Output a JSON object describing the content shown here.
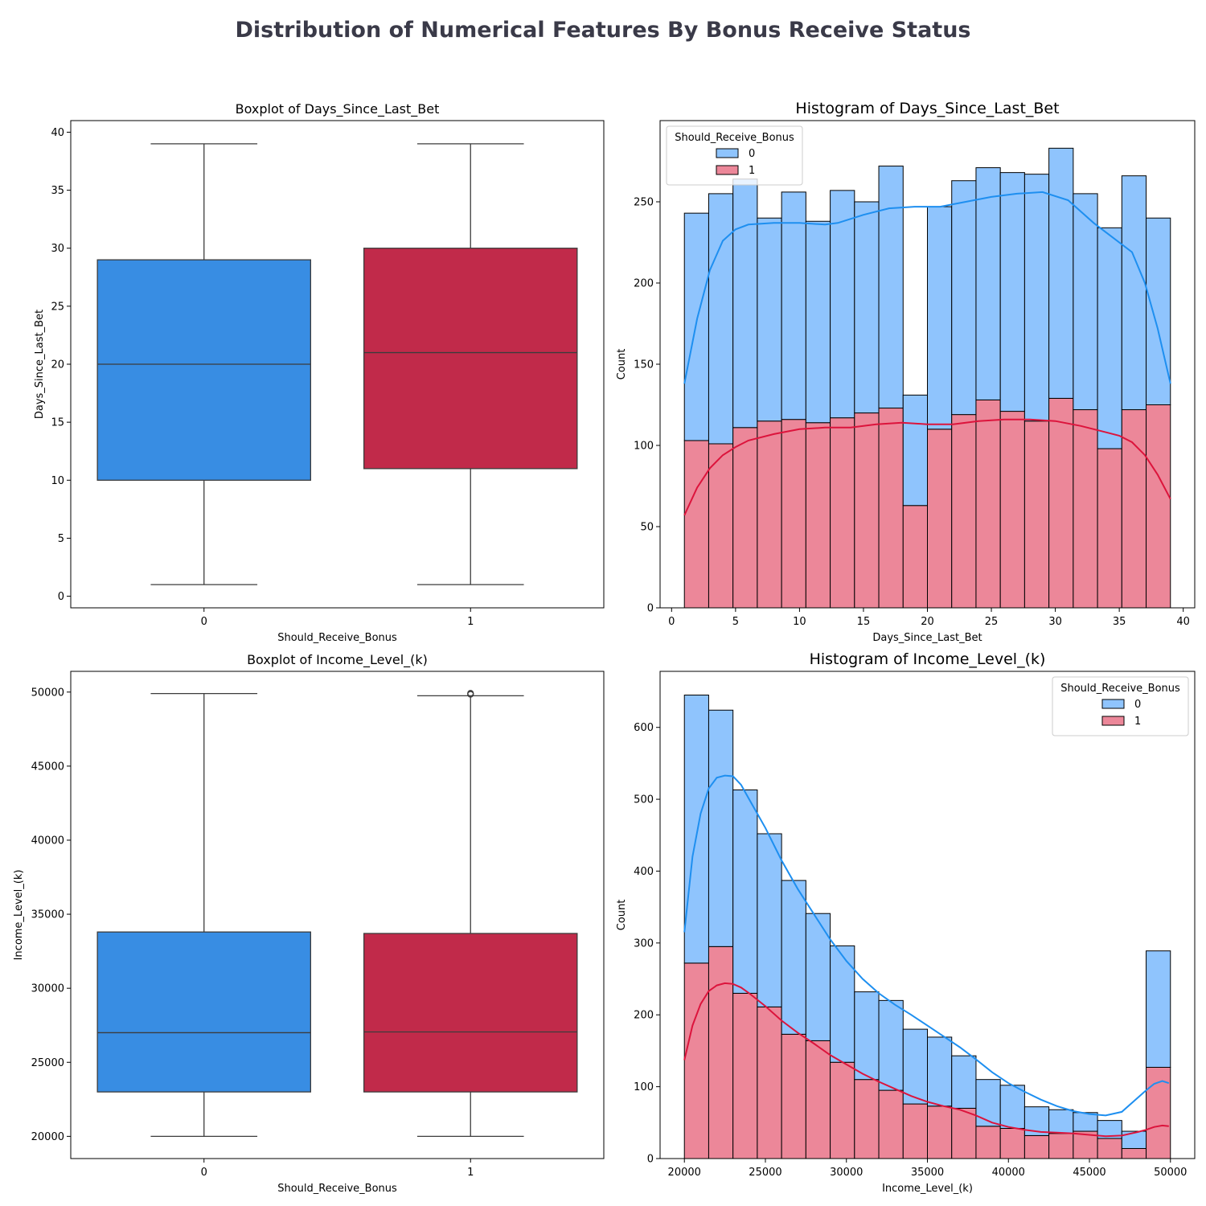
{
  "figure": {
    "title": "Distribution of Numerical Features By Bonus Receive Status"
  },
  "colors": {
    "box_0": "#388de3",
    "box_1": "#c12a4a",
    "hist_0": "#8fc4fd",
    "hist_1": "#ec8799",
    "kde_0": "#1e8ff0",
    "kde_1": "#dc143c"
  },
  "chart_data": [
    {
      "id": "box_days",
      "type": "box",
      "title": "Boxplot of Days_Since_Last_Bet",
      "xlabel": "Should_Receive_Bonus",
      "ylabel": "Days_Since_Last_Bet",
      "ylim": [
        -1,
        41
      ],
      "yticks": [
        0,
        5,
        10,
        15,
        20,
        25,
        30,
        35,
        40
      ],
      "categories": [
        "0",
        "1"
      ],
      "boxes": [
        {
          "category": "0",
          "whisker_low": 1,
          "q1": 10,
          "median": 20,
          "q3": 29,
          "whisker_high": 39,
          "outliers": []
        },
        {
          "category": "1",
          "whisker_low": 1,
          "q1": 11,
          "median": 21,
          "q3": 30,
          "whisker_high": 39,
          "outliers": []
        }
      ]
    },
    {
      "id": "hist_days",
      "type": "histogram",
      "title": "Histogram of Days_Since_Last_Bet",
      "xlabel": "Days_Since_Last_Bet",
      "ylabel": "Count",
      "xlim": [
        -0.9,
        40.9
      ],
      "ylim": [
        0,
        300
      ],
      "xticks": [
        0,
        5,
        10,
        15,
        20,
        25,
        30,
        35,
        40
      ],
      "yticks": [
        0,
        50,
        100,
        150,
        200,
        250
      ],
      "stacked": true,
      "bin_start": 1,
      "bin_width": 1.9,
      "legend": {
        "title": "Should_Receive_Bonus",
        "labels": [
          "0",
          "1"
        ],
        "position": "upper-left"
      },
      "series": [
        {
          "name": "1",
          "values": [
            103,
            101,
            111,
            115,
            116,
            114,
            117,
            120,
            123,
            63,
            110,
            119,
            128,
            121,
            115,
            129,
            122,
            98,
            122,
            125
          ]
        },
        {
          "name": "0",
          "values": [
            140,
            154,
            153,
            125,
            140,
            124,
            140,
            130,
            149,
            68,
            137,
            144,
            143,
            147,
            152,
            154,
            133,
            136,
            144,
            115
          ]
        }
      ],
      "kde": [
        {
          "name": "0",
          "x": [
            1,
            2,
            3,
            4,
            5,
            6,
            8,
            10,
            12,
            13,
            15,
            17,
            19,
            21,
            23,
            25,
            27,
            29,
            31,
            33,
            34,
            36,
            37,
            38,
            39
          ],
          "y": [
            138,
            178,
            208,
            226,
            233,
            236,
            237,
            237,
            236,
            237,
            242,
            246,
            247,
            247,
            250,
            253,
            255,
            256,
            251,
            237,
            231,
            219,
            200,
            172,
            138
          ]
        },
        {
          "name": "1",
          "x": [
            1,
            2,
            3,
            4,
            5,
            6,
            8,
            10,
            12,
            14,
            16,
            18,
            20,
            22,
            24,
            26,
            28,
            30,
            32,
            34,
            35,
            36,
            37,
            38,
            39
          ],
          "y": [
            57,
            74,
            86,
            94,
            99,
            103,
            107,
            110,
            111,
            111,
            113,
            114,
            113,
            113,
            115,
            116,
            116,
            115,
            112,
            108,
            106,
            102,
            94,
            82,
            67
          ]
        }
      ]
    },
    {
      "id": "box_income",
      "type": "box",
      "title": "Boxplot of Income_Level_(k)",
      "xlabel": "Should_Receive_Bonus",
      "ylabel": "Income_Level_(k)",
      "ylim": [
        18500,
        51400
      ],
      "yticks": [
        20000,
        25000,
        30000,
        35000,
        40000,
        45000,
        50000
      ],
      "categories": [
        "0",
        "1"
      ],
      "boxes": [
        {
          "category": "0",
          "whisker_low": 20000,
          "q1": 23000,
          "median": 27000,
          "q3": 33800,
          "whisker_high": 49900,
          "outliers": []
        },
        {
          "category": "1",
          "whisker_low": 20000,
          "q1": 23000,
          "median": 27050,
          "q3": 33700,
          "whisker_high": 49750,
          "outliers": [
            49850,
            49920
          ]
        }
      ]
    },
    {
      "id": "hist_income",
      "type": "histogram",
      "title": "Histogram of Income_Level_(k)",
      "xlabel": "Income_Level_(k)",
      "ylabel": "Count",
      "xlim": [
        18500,
        51500
      ],
      "ylim": [
        0,
        678
      ],
      "xticks": [
        20000,
        25000,
        30000,
        35000,
        40000,
        45000,
        50000
      ],
      "yticks": [
        0,
        100,
        200,
        300,
        400,
        500,
        600
      ],
      "stacked": true,
      "bin_start": 20000,
      "bin_width": 1500,
      "legend": {
        "title": "Should_Receive_Bonus",
        "labels": [
          "0",
          "1"
        ],
        "position": "upper-right"
      },
      "series": [
        {
          "name": "1",
          "values": [
            272,
            295,
            230,
            211,
            173,
            164,
            134,
            110,
            95,
            76,
            73,
            70,
            45,
            42,
            32,
            35,
            38,
            28,
            14,
            127
          ]
        },
        {
          "name": "0",
          "values": [
            373,
            329,
            283,
            241,
            214,
            177,
            162,
            122,
            125,
            104,
            96,
            73,
            65,
            60,
            40,
            33,
            26,
            25,
            24,
            162
          ]
        }
      ],
      "kde": [
        {
          "name": "0",
          "x": [
            20000,
            20500,
            21000,
            21500,
            22000,
            22500,
            23000,
            23500,
            24000,
            25000,
            26000,
            27000,
            28000,
            29000,
            30000,
            31000,
            32000,
            33000,
            34000,
            35000,
            36000,
            37000,
            38000,
            39000,
            40000,
            41000,
            42000,
            43000,
            44000,
            45000,
            46000,
            47000,
            48000,
            48500,
            49000,
            49500,
            49900
          ],
          "y": [
            315,
            420,
            480,
            515,
            530,
            533,
            532,
            520,
            500,
            460,
            415,
            375,
            340,
            305,
            275,
            250,
            230,
            214,
            200,
            185,
            170,
            155,
            138,
            120,
            105,
            93,
            82,
            73,
            66,
            62,
            60,
            65,
            85,
            95,
            104,
            108,
            105
          ]
        },
        {
          "name": "1",
          "x": [
            20000,
            20500,
            21000,
            21500,
            22000,
            22500,
            23000,
            23500,
            24000,
            25000,
            26000,
            27000,
            28000,
            29000,
            30000,
            31000,
            32000,
            33000,
            34000,
            35000,
            36000,
            37000,
            38000,
            39000,
            40000,
            41000,
            42000,
            43000,
            44000,
            45000,
            46000,
            47000,
            48000,
            48500,
            49000,
            49500,
            49900
          ],
          "y": [
            137,
            185,
            215,
            233,
            241,
            244,
            243,
            238,
            230,
            212,
            192,
            175,
            160,
            144,
            131,
            118,
            107,
            97,
            87,
            79,
            73,
            68,
            60,
            50,
            44,
            40,
            37,
            36,
            35,
            33,
            31,
            32,
            37,
            40,
            44,
            46,
            45
          ]
        }
      ]
    }
  ]
}
